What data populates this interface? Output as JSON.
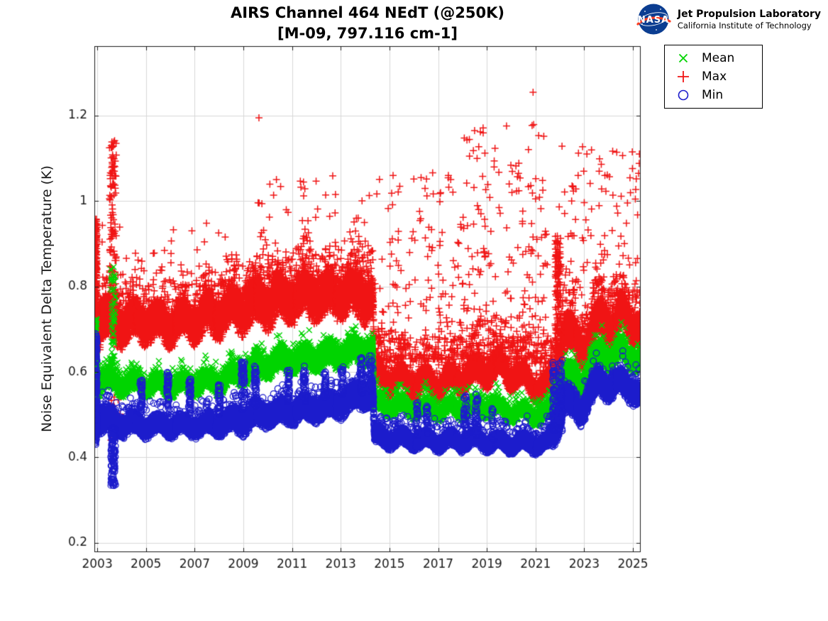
{
  "header": {
    "title": "AIRS Channel 464 NEdT (@250K)",
    "subtitle": "[M-09, 797.116 cm-1]",
    "logo": {
      "org": "NASA",
      "line1": "Jet Propulsion Laboratory",
      "line2": "California Institute of Technology",
      "meatball_blue": "#0b3d91",
      "swoosh_red": "#fc3d21"
    }
  },
  "legend": {
    "items": [
      {
        "label": "Mean",
        "marker": "x",
        "color": "#00d400"
      },
      {
        "label": "Max",
        "marker": "+",
        "color": "#f01414"
      },
      {
        "label": "Min",
        "marker": "o",
        "color": "#1c1ccc"
      }
    ]
  },
  "chart_data": {
    "type": "scatter",
    "title": "AIRS Channel 464 NEdT (@250K)",
    "subtitle": "[M-09, 797.116 cm-1]",
    "xlabel": "",
    "ylabel": "Noise Equivalent Delta Temperature (K)",
    "xlim": [
      2002.88,
      2025.32
    ],
    "ylim": [
      0.178,
      1.363
    ],
    "xticks": [
      2003,
      2005,
      2007,
      2009,
      2011,
      2013,
      2015,
      2017,
      2019,
      2021,
      2023,
      2025
    ],
    "xtick_labels": [
      "2003",
      "2005",
      "2007",
      "2009",
      "2011",
      "2013",
      "2015",
      "2017",
      "2019",
      "2021",
      "2023",
      "2025"
    ],
    "yticks": [
      0.2,
      0.4,
      0.6,
      0.8,
      1.0,
      1.2
    ],
    "ytick_labels": [
      "0.2",
      "0.4",
      "0.6",
      "0.8",
      "1",
      "1.2"
    ],
    "grid": true,
    "grid_color": "#d7d7d7",
    "axis_color": "#1a1a1a",
    "legend_position": "outside-top-right",
    "draw_order": [
      "Max",
      "Mean",
      "Min"
    ],
    "series": [
      {
        "name": "Mean",
        "marker": "x",
        "color": "#00d400",
        "seed": 11,
        "seasonal_amp": 0.012,
        "tail": {
          "p": 0.05,
          "up": 0.04
        },
        "band": [
          [
            2002.95,
            0.585,
            0.035
          ],
          [
            2003.4,
            0.578,
            0.026
          ],
          [
            2004,
            0.572,
            0.023
          ],
          [
            2005,
            0.57,
            0.022
          ],
          [
            2006,
            0.568,
            0.022
          ],
          [
            2007,
            0.572,
            0.023
          ],
          [
            2008,
            0.578,
            0.025
          ],
          [
            2009,
            0.6,
            0.028
          ],
          [
            2009.6,
            0.615,
            0.03
          ],
          [
            2010.5,
            0.625,
            0.03
          ],
          [
            2011.5,
            0.632,
            0.032
          ],
          [
            2012.5,
            0.638,
            0.032
          ],
          [
            2013.5,
            0.648,
            0.033
          ],
          [
            2014.32,
            0.652,
            0.033
          ],
          [
            2014.38,
            0.525,
            0.02
          ],
          [
            2015.5,
            0.518,
            0.018
          ],
          [
            2017,
            0.511,
            0.017
          ],
          [
            2018.3,
            0.516,
            0.019
          ],
          [
            2019.2,
            0.518,
            0.019
          ],
          [
            2020,
            0.506,
            0.017
          ],
          [
            2021,
            0.5,
            0.017
          ],
          [
            2021.5,
            0.498,
            0.017
          ],
          [
            2021.85,
            0.53,
            0.04
          ],
          [
            2022.2,
            0.598,
            0.03
          ],
          [
            2022.6,
            0.585,
            0.028
          ],
          [
            2022.9,
            0.572,
            0.028
          ],
          [
            2023.3,
            0.615,
            0.03
          ],
          [
            2023.7,
            0.645,
            0.03
          ],
          [
            2024.1,
            0.63,
            0.028
          ],
          [
            2024.5,
            0.653,
            0.028
          ],
          [
            2024.9,
            0.636,
            0.028
          ],
          [
            2025.3,
            0.625,
            0.028
          ]
        ],
        "events": [
          [
            2002.88,
            2002.99,
            0.55,
            0.73,
            150
          ],
          [
            2003.55,
            2003.75,
            0.6,
            0.855,
            55
          ]
        ],
        "scatter": [],
        "outliers": []
      },
      {
        "name": "Max",
        "marker": "+",
        "color": "#f01414",
        "seed": 7,
        "seasonal_amp": 0.018,
        "tail": {
          "p": 0.1,
          "up": 0.1
        },
        "band": [
          [
            2002.95,
            0.73,
            0.065
          ],
          [
            2003.4,
            0.72,
            0.055
          ],
          [
            2004,
            0.715,
            0.05
          ],
          [
            2005,
            0.72,
            0.05
          ],
          [
            2006,
            0.71,
            0.048
          ],
          [
            2007,
            0.722,
            0.05
          ],
          [
            2008,
            0.735,
            0.055
          ],
          [
            2009,
            0.755,
            0.058
          ],
          [
            2010,
            0.765,
            0.06
          ],
          [
            2011,
            0.775,
            0.06
          ],
          [
            2012,
            0.78,
            0.06
          ],
          [
            2013,
            0.785,
            0.06
          ],
          [
            2014.32,
            0.775,
            0.058
          ],
          [
            2014.38,
            0.59,
            0.032
          ],
          [
            2015.5,
            0.578,
            0.03
          ],
          [
            2017,
            0.572,
            0.03
          ],
          [
            2018,
            0.585,
            0.032
          ],
          [
            2019,
            0.608,
            0.035
          ],
          [
            2019.6,
            0.612,
            0.035
          ],
          [
            2020.3,
            0.59,
            0.032
          ],
          [
            2021,
            0.568,
            0.028
          ],
          [
            2021.5,
            0.558,
            0.028
          ],
          [
            2021.85,
            0.6,
            0.05
          ],
          [
            2022.2,
            0.7,
            0.05
          ],
          [
            2022.6,
            0.672,
            0.045
          ],
          [
            2023,
            0.655,
            0.045
          ],
          [
            2023.4,
            0.7,
            0.05
          ],
          [
            2023.8,
            0.732,
            0.05
          ],
          [
            2024.2,
            0.7,
            0.047
          ],
          [
            2024.6,
            0.735,
            0.05
          ],
          [
            2025,
            0.712,
            0.05
          ],
          [
            2025.3,
            0.7,
            0.05
          ]
        ],
        "events": [
          [
            2002.88,
            2002.99,
            0.66,
            0.96,
            240
          ],
          [
            2003.5,
            2003.78,
            0.72,
            1.145,
            110
          ],
          [
            2003.55,
            2003.95,
            0.44,
            0.56,
            10
          ],
          [
            2021.8,
            2022.05,
            0.58,
            0.92,
            160
          ]
        ],
        "scatter": [
          [
            2003.0,
            2009.5,
            0.8,
            0.95,
            55,
            2.0
          ],
          [
            2009.5,
            2014.35,
            0.86,
            1.06,
            70,
            2.0
          ],
          [
            2014.4,
            2018.0,
            0.63,
            1.07,
            210,
            2.6
          ],
          [
            2018.0,
            2021.5,
            0.63,
            1.18,
            260,
            2.2
          ],
          [
            2021.9,
            2025.3,
            0.78,
            1.13,
            110,
            2.0
          ]
        ],
        "outliers": [
          [
            2009.64,
            1.195
          ],
          [
            2015.15,
            1.06
          ],
          [
            2016.3,
            1.055
          ],
          [
            2017.1,
            1.02
          ],
          [
            2018.6,
            1.1
          ],
          [
            2018.85,
            1.16
          ],
          [
            2019.3,
            1.08
          ],
          [
            2020.3,
            1.065
          ],
          [
            2020.9,
            1.255
          ],
          [
            2022.75,
            1.06
          ],
          [
            2023.3,
            1.12
          ],
          [
            2023.85,
            1.06
          ],
          [
            2024.9,
            1.02
          ],
          [
            2025.1,
            1.005
          ]
        ]
      },
      {
        "name": "Min",
        "marker": "o",
        "color": "#1c1ccc",
        "seed": 13,
        "seasonal_amp": 0.01,
        "tail": {
          "p": 0.05,
          "up": 0.05
        },
        "band": [
          [
            2002.95,
            0.5,
            0.045
          ],
          [
            2003.4,
            0.487,
            0.03
          ],
          [
            2004,
            0.478,
            0.026
          ],
          [
            2005,
            0.474,
            0.023
          ],
          [
            2006,
            0.472,
            0.022
          ],
          [
            2007,
            0.474,
            0.023
          ],
          [
            2008,
            0.478,
            0.026
          ],
          [
            2009,
            0.49,
            0.034
          ],
          [
            2009.6,
            0.5,
            0.032
          ],
          [
            2010.5,
            0.505,
            0.03
          ],
          [
            2011.5,
            0.512,
            0.03
          ],
          [
            2012.5,
            0.518,
            0.03
          ],
          [
            2013.2,
            0.53,
            0.032
          ],
          [
            2013.8,
            0.548,
            0.034
          ],
          [
            2014.32,
            0.552,
            0.034
          ],
          [
            2014.38,
            0.448,
            0.022
          ],
          [
            2015.5,
            0.443,
            0.02
          ],
          [
            2017,
            0.438,
            0.019
          ],
          [
            2018.5,
            0.44,
            0.02
          ],
          [
            2020,
            0.432,
            0.018
          ],
          [
            2021.5,
            0.432,
            0.018
          ],
          [
            2021.85,
            0.47,
            0.045
          ],
          [
            2022.15,
            0.545,
            0.035
          ],
          [
            2022.5,
            0.523,
            0.038
          ],
          [
            2022.85,
            0.503,
            0.03
          ],
          [
            2023.2,
            0.55,
            0.034
          ],
          [
            2023.6,
            0.578,
            0.034
          ],
          [
            2024,
            0.565,
            0.03
          ],
          [
            2024.4,
            0.576,
            0.03
          ],
          [
            2024.8,
            0.562,
            0.03
          ],
          [
            2025.1,
            0.556,
            0.03
          ],
          [
            2025.3,
            0.552,
            0.03
          ]
        ],
        "events": [
          [
            2002.88,
            2002.99,
            0.43,
            0.69,
            220
          ],
          [
            2003.55,
            2003.75,
            0.33,
            0.47,
            110
          ],
          [
            2004.75,
            2004.85,
            0.5,
            0.585,
            40
          ],
          [
            2005.85,
            2005.95,
            0.5,
            0.6,
            45
          ],
          [
            2006.75,
            2006.85,
            0.5,
            0.585,
            40
          ],
          [
            2007.95,
            2008.06,
            0.5,
            0.57,
            35
          ],
          [
            2008.9,
            2009.05,
            0.51,
            0.625,
            55
          ],
          [
            2009.45,
            2009.56,
            0.52,
            0.615,
            40
          ],
          [
            2010.8,
            2010.9,
            0.53,
            0.61,
            35
          ],
          [
            2011.45,
            2011.56,
            0.53,
            0.615,
            40
          ],
          [
            2012.3,
            2012.4,
            0.54,
            0.6,
            30
          ],
          [
            2013.0,
            2013.1,
            0.545,
            0.615,
            35
          ],
          [
            2013.8,
            2013.9,
            0.55,
            0.635,
            45
          ],
          [
            2014.15,
            2014.3,
            0.555,
            0.64,
            45
          ],
          [
            2016.1,
            2016.2,
            0.45,
            0.53,
            30
          ],
          [
            2016.5,
            2016.6,
            0.45,
            0.52,
            25
          ],
          [
            2018.05,
            2018.2,
            0.45,
            0.545,
            40
          ],
          [
            2018.5,
            2018.65,
            0.45,
            0.55,
            40
          ],
          [
            2019.2,
            2019.3,
            0.44,
            0.52,
            25
          ],
          [
            2021.7,
            2021.82,
            0.45,
            0.625,
            60
          ],
          [
            2021.95,
            2022.1,
            0.46,
            0.63,
            70
          ]
        ],
        "scatter": [],
        "outliers": []
      }
    ]
  }
}
